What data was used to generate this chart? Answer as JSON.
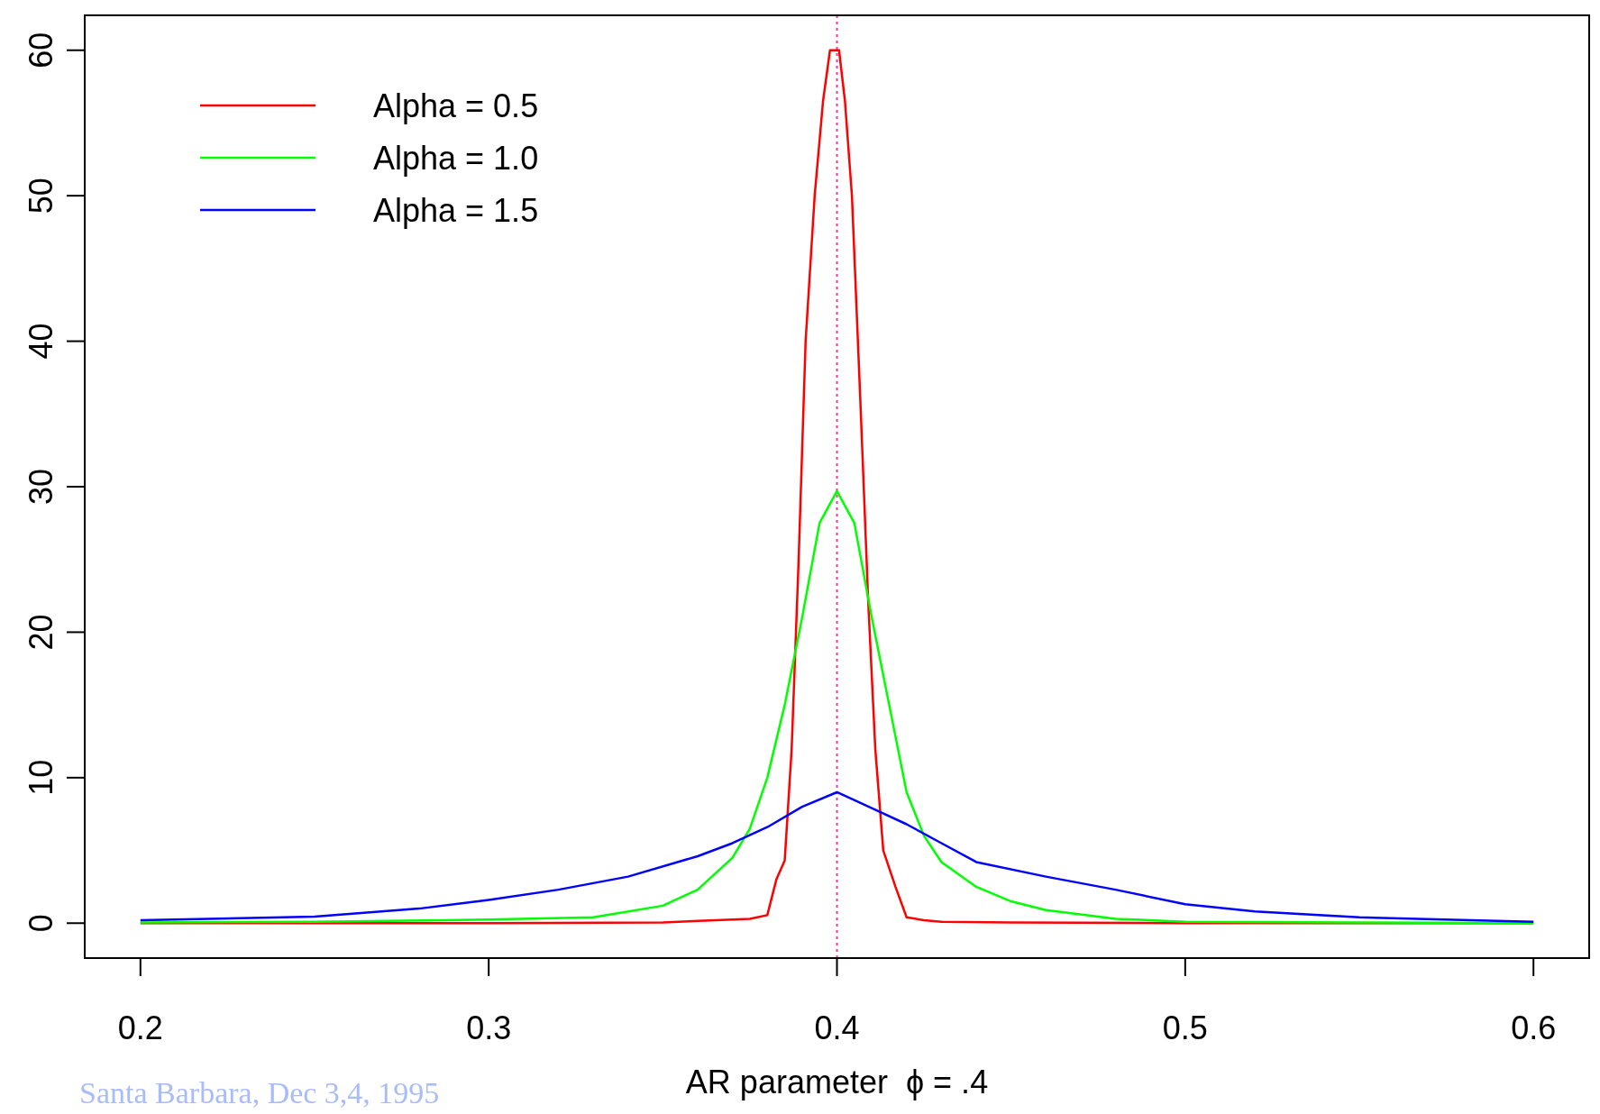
{
  "chart_data": {
    "type": "line",
    "xlabel": "AR parameter  ϕ = .4",
    "xlim": [
      0.184,
      0.616
    ],
    "ylim": [
      -2.4,
      62.4
    ],
    "xticks": [
      0.2,
      0.3,
      0.4,
      0.5,
      0.6
    ],
    "yticks": [
      0,
      10,
      20,
      30,
      40,
      50,
      60
    ],
    "grid": false,
    "legend": "top left",
    "line_style": "solid",
    "marker": "none",
    "ref_lines": [
      {
        "axis": "x",
        "value": 0.4,
        "color": "#ff3399",
        "line_style": "dotted"
      }
    ],
    "annotations": [
      "Santa Barbara, Dec 3,4, 1995"
    ],
    "series": [
      {
        "name": "Alpha = 0.5",
        "color": "#ff0000",
        "x": [
          0.2,
          0.25,
          0.3,
          0.35,
          0.36,
          0.37,
          0.375,
          0.38,
          0.3826,
          0.385,
          0.387,
          0.389,
          0.391,
          0.3936,
          0.396,
          0.398,
          0.4006,
          0.4023,
          0.4043,
          0.4067,
          0.409,
          0.411,
          0.4133,
          0.4168,
          0.42,
          0.425,
          0.43,
          0.45,
          0.5,
          0.55,
          0.6
        ],
        "values": [
          0,
          0,
          0,
          0.05,
          0.15,
          0.25,
          0.3,
          0.55,
          3,
          4.3,
          12,
          25,
          40,
          50,
          56.5,
          60,
          60,
          56.5,
          50,
          36,
          22,
          12,
          5,
          2.5,
          0.4,
          0.2,
          0.1,
          0.05,
          0,
          0,
          0
        ]
      },
      {
        "name": "Alpha = 1.0",
        "color": "#00ff00",
        "x": [
          0.2,
          0.25,
          0.3,
          0.33,
          0.35,
          0.36,
          0.37,
          0.375,
          0.38,
          0.385,
          0.39,
          0.395,
          0.4,
          0.405,
          0.41,
          0.415,
          0.42,
          0.425,
          0.43,
          0.44,
          0.45,
          0.46,
          0.48,
          0.5,
          0.55,
          0.6
        ],
        "values": [
          0.05,
          0.1,
          0.25,
          0.4,
          1.2,
          2.3,
          4.5,
          6.5,
          10,
          15,
          21,
          27.5,
          29.7,
          27.5,
          21,
          15,
          9,
          6,
          4.2,
          2.5,
          1.5,
          0.9,
          0.3,
          0.1,
          0.05,
          0
        ]
      },
      {
        "name": "Alpha = 1.5",
        "color": "#0000ff",
        "x": [
          0.2,
          0.25,
          0.28,
          0.3,
          0.32,
          0.34,
          0.36,
          0.37,
          0.38,
          0.39,
          0.4,
          0.41,
          0.42,
          0.43,
          0.44,
          0.46,
          0.48,
          0.5,
          0.52,
          0.55,
          0.6
        ],
        "values": [
          0.2,
          0.45,
          1,
          1.6,
          2.3,
          3.2,
          4.6,
          5.5,
          6.6,
          8,
          9,
          7.9,
          6.8,
          5.5,
          4.2,
          3.2,
          2.3,
          1.3,
          0.8,
          0.4,
          0.1
        ]
      }
    ]
  }
}
